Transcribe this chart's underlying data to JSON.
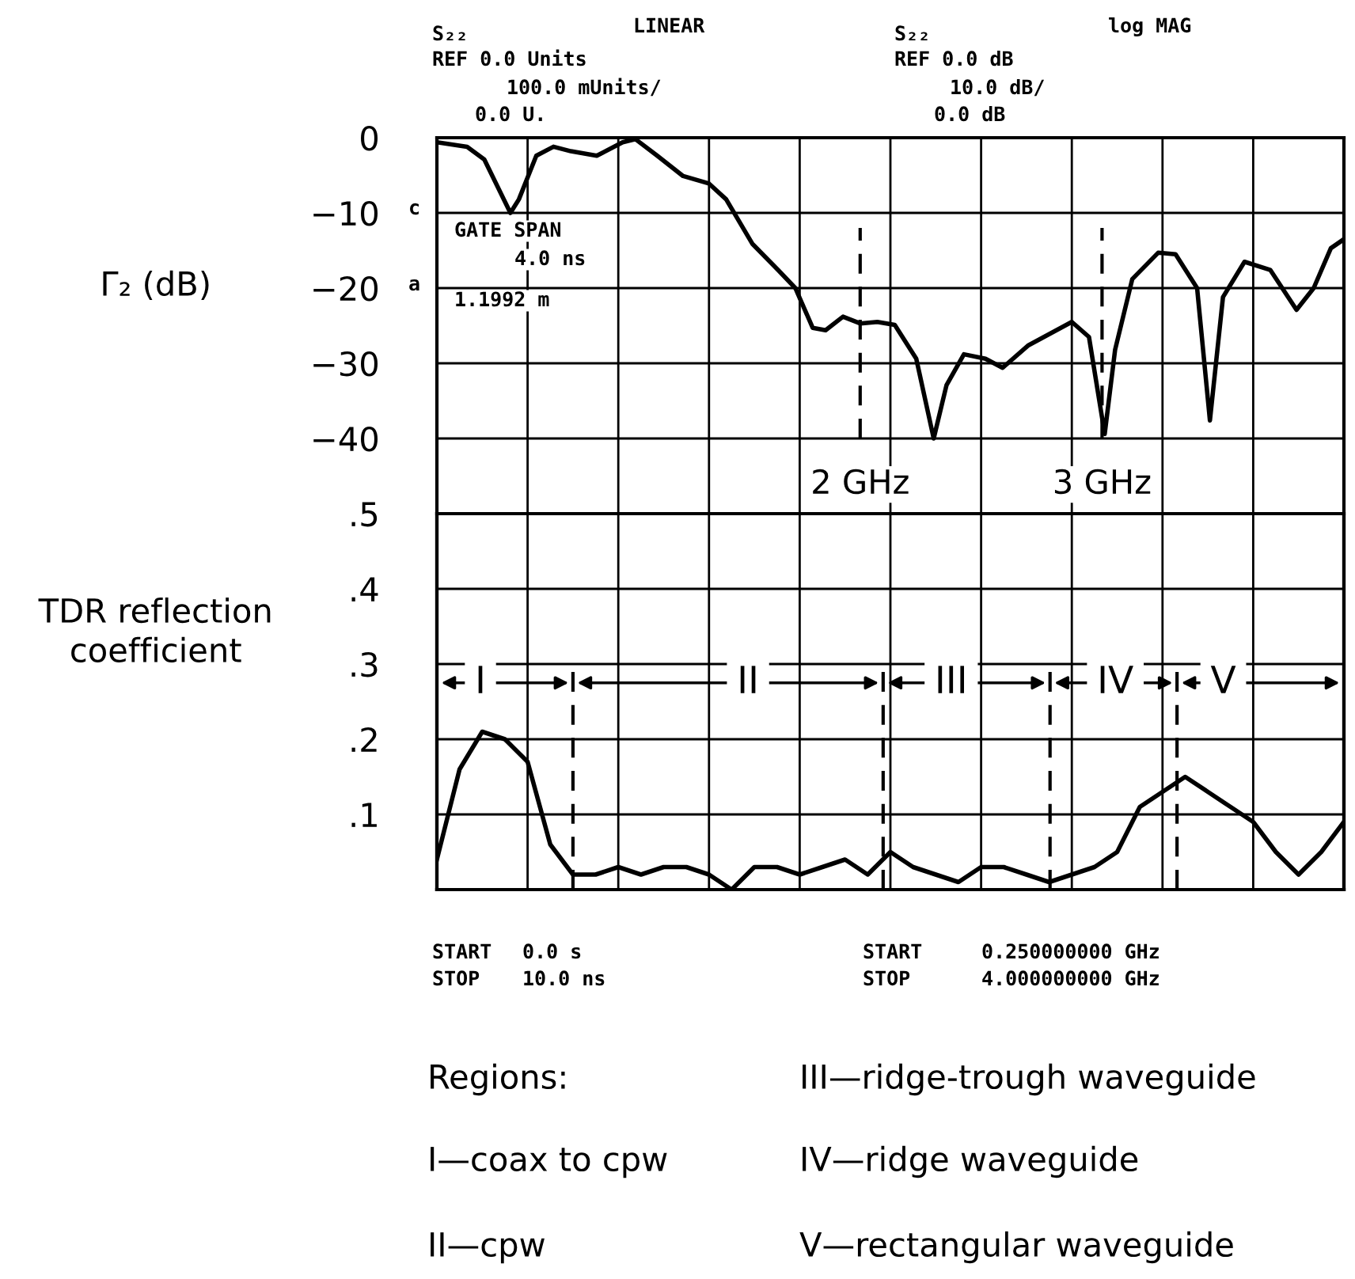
{
  "chart_data": [
    {
      "type": "line",
      "ylabel": "Γ₂ (dB)",
      "xlim": [
        0.25,
        4
      ],
      "ylim": [
        -100,
        0
      ],
      "xticks": [
        {
          "value": 0.25,
          "label": null
        },
        {
          "value": 0.625,
          "label": null
        },
        {
          "value": 1.0,
          "label": null
        },
        {
          "value": 1.375,
          "label": null
        },
        {
          "value": 1.75,
          "label": null
        },
        {
          "value": 2.125,
          "label": null
        },
        {
          "value": 2.5,
          "label": null
        },
        {
          "value": 2.875,
          "label": null
        },
        {
          "value": 3.25,
          "label": null
        },
        {
          "value": 3.625,
          "label": null
        },
        {
          "value": 4.0,
          "label": null
        }
      ],
      "yticks": [
        0,
        {
          "value": -10,
          "label": "−10"
        },
        {
          "value": -20,
          "label": "−20"
        },
        {
          "value": -30,
          "label": "−30"
        },
        {
          "value": -40,
          "label": "−40"
        }
      ],
      "tick_labels": "y",
      "grid": true,
      "series": [
        {
          "color": "#000000",
          "line_style": "solid",
          "x": [
            0.25,
            0.375,
            0.446,
            0.554,
            0.589,
            0.661,
            0.732,
            0.804,
            0.911,
            1.018,
            1.071,
            1.161,
            1.268,
            1.375,
            1.446,
            1.554,
            1.661,
            1.732,
            1.804,
            1.857,
            1.929,
            2.0,
            2.071,
            2.143,
            2.232,
            2.304,
            2.357,
            2.429,
            2.518,
            2.589,
            2.696,
            2.875,
            2.946,
            3.011,
            3.054,
            3.125,
            3.232,
            3.304,
            3.393,
            3.446,
            3.5,
            3.589,
            3.696,
            3.804,
            3.875,
            3.946,
            4.0
          ],
          "values": [
            -0.6,
            -1.2,
            -2.9,
            -10.0,
            -8.2,
            -2.4,
            -1.2,
            -1.8,
            -2.4,
            -0.6,
            -0.2,
            -2.4,
            -5.1,
            -6.1,
            -8.2,
            -14.1,
            -17.6,
            -20.0,
            -25.3,
            -25.6,
            -23.8,
            -24.7,
            -24.5,
            -24.9,
            -29.4,
            -40.0,
            -32.9,
            -28.8,
            -29.4,
            -30.6,
            -27.6,
            -24.5,
            -26.5,
            -39.4,
            -28.2,
            -18.8,
            -15.3,
            -15.5,
            -20.0,
            -37.6,
            -21.2,
            -16.5,
            -17.6,
            -22.9,
            -20.0,
            -14.7,
            -13.5
          ]
        }
      ],
      "ref_lines": [
        {
          "axis": "x",
          "value": 2,
          "label": "2 GHz",
          "line_style": "dashed",
          "color": "#000000"
        },
        {
          "axis": "x",
          "value": 3,
          "label": "3 GHz",
          "line_style": "dashed",
          "color": "#000000"
        }
      ],
      "annotations": [
        "S₂₂",
        "log MAG",
        "REF 0.0 dB",
        "10.0 dB/",
        "0.0 dB",
        "START",
        "0.250000000 GHz",
        "STOP",
        "4.000000000 GHz",
        "c",
        "a"
      ]
    },
    {
      "type": "line",
      "ylabel": "TDR reflection\ncoefficient",
      "ylim": [
        0,
        0.5
      ],
      "categories": [
        null,
        null,
        null,
        null,
        null,
        null,
        null,
        null,
        null,
        null,
        null,
        null,
        null,
        null,
        null,
        null,
        null,
        null,
        null,
        null,
        null,
        null,
        null,
        null,
        null,
        null,
        null,
        null,
        null,
        null,
        null,
        null,
        null,
        null,
        null,
        null,
        null,
        null,
        null,
        null,
        null
      ],
      "yticks": [
        {
          "value": 0.1,
          "label": ".1"
        },
        {
          "value": 0.2,
          "label": ".2"
        },
        {
          "value": 0.3,
          "label": ".3"
        },
        {
          "value": 0.4,
          "label": ".4"
        },
        {
          "value": 0.5,
          "label": ".5"
        }
      ],
      "grid": "y",
      "series": [
        {
          "color": "#000000",
          "line_style": "solid",
          "values": [
            0.04,
            0.16,
            0.21,
            0.2,
            0.17,
            0.06,
            0.02,
            0.02,
            0.03,
            0.02,
            0.03,
            0.03,
            0.02,
            0.0,
            0.03,
            0.03,
            0.02,
            0.03,
            0.04,
            0.02,
            0.05,
            0.03,
            0.02,
            0.01,
            0.03,
            0.03,
            0.02,
            0.01,
            0.02,
            0.03,
            0.05,
            0.11,
            0.13,
            0.15,
            0.13,
            0.11,
            0.09,
            0.05,
            0.02,
            0.05,
            0.09
          ]
        }
      ],
      "annotations": [
        "S₂₂",
        "LINEAR",
        "REF 0.0 Units",
        "100.0 mUnits/",
        "0.0 U.",
        "GATE SPAN",
        "4.0 ns",
        "1.1992 m",
        "START",
        "0.0 s",
        "STOP",
        "10.0 ns",
        "Regions:",
        "I—coax to cpw",
        "II—cpw",
        "III—ridge-trough waveguide",
        "IV—ridge waveguide",
        "V—rectangular waveguide",
        "I",
        "II",
        "III",
        "IV",
        "V"
      ]
    }
  ]
}
